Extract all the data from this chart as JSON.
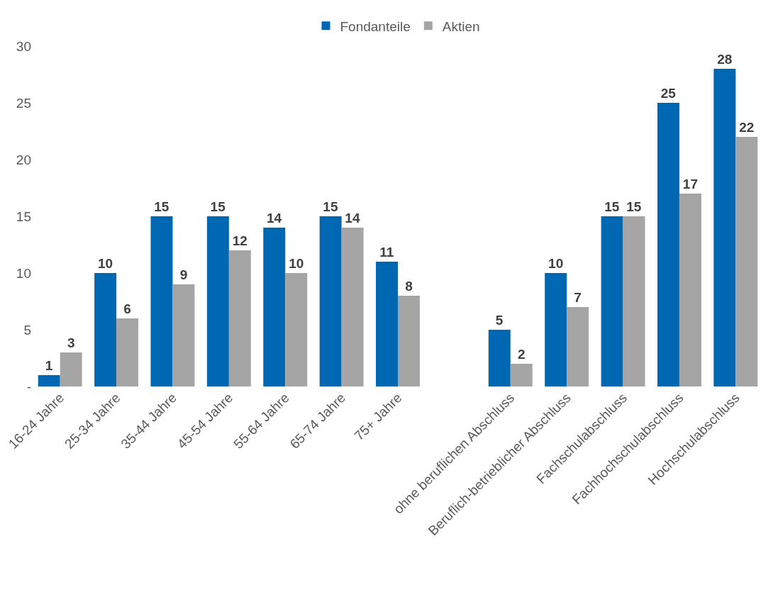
{
  "chart_data": {
    "type": "bar",
    "categories": [
      "16-24 Jahre",
      "25-34 Jahre",
      "35-44 Jahre",
      "45-54 Jahre",
      "55-64 Jahre",
      "65-74 Jahre",
      "75+ Jahre",
      null,
      "ohne beruflichen Abschluss",
      "Beruflich-betrieblicher Abschluss",
      "Fachschulabschluss",
      "Fachhochschulabschluss",
      "Hochschulabschluss"
    ],
    "series": [
      {
        "name": "Fondanteile",
        "color": "#0068b3",
        "values": [
          1,
          10,
          15,
          15,
          14,
          15,
          11,
          null,
          5,
          10,
          15,
          25,
          28
        ]
      },
      {
        "name": "Aktien",
        "color": "#a5a5a5",
        "values": [
          3,
          6,
          9,
          12,
          10,
          14,
          8,
          null,
          2,
          7,
          15,
          17,
          22
        ]
      }
    ],
    "ylim": [
      0,
      30
    ],
    "yticks": [
      {
        "value": 0,
        "label": "-"
      },
      5,
      10,
      15,
      20,
      25,
      30
    ],
    "grid": false,
    "legend": "top",
    "data_labels": true
  }
}
